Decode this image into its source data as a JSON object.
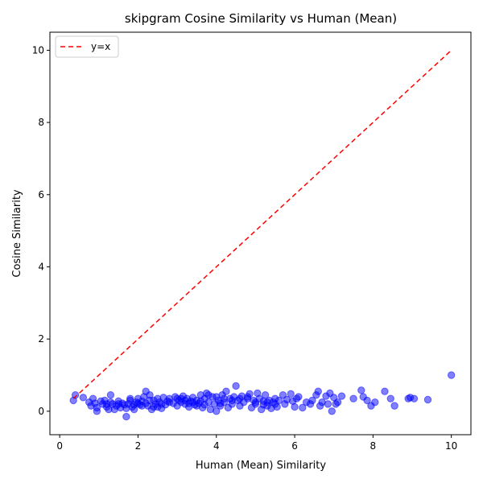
{
  "chart_data": {
    "type": "scatter",
    "title": "skipgram Cosine Similarity vs Human (Mean)",
    "xlabel": "Human (Mean) Similarity",
    "ylabel": "Cosine Similarity",
    "xlim": [
      -0.25,
      10.5
    ],
    "ylim": [
      -0.65,
      10.5
    ],
    "xticks": [
      0,
      2,
      4,
      6,
      8,
      10
    ],
    "yticks": [
      0,
      2,
      4,
      6,
      8,
      10
    ],
    "grid": false,
    "legend": {
      "position": "top-left",
      "entries": [
        "y=x"
      ]
    },
    "colors": {
      "points": "#0000ff",
      "reference": "#ff0000"
    },
    "reference_line": {
      "name": "y=x",
      "x": [
        0.35,
        10
      ],
      "y": [
        0.35,
        10
      ]
    },
    "points": [
      [
        0.35,
        0.3
      ],
      [
        0.4,
        0.45
      ],
      [
        0.6,
        0.38
      ],
      [
        0.75,
        0.25
      ],
      [
        0.8,
        0.15
      ],
      [
        0.85,
        0.35
      ],
      [
        0.9,
        0.22
      ],
      [
        0.95,
        0.1
      ],
      [
        0.95,
        0.0
      ],
      [
        1.05,
        0.28
      ],
      [
        1.1,
        0.2
      ],
      [
        1.15,
        0.3
      ],
      [
        1.2,
        0.12
      ],
      [
        1.25,
        0.05
      ],
      [
        1.3,
        0.45
      ],
      [
        1.3,
        0.25
      ],
      [
        1.35,
        0.2
      ],
      [
        1.4,
        0.05
      ],
      [
        1.45,
        0.15
      ],
      [
        1.5,
        0.28
      ],
      [
        1.55,
        0.1
      ],
      [
        1.6,
        0.22
      ],
      [
        1.65,
        0.18
      ],
      [
        1.7,
        0.08
      ],
      [
        1.7,
        -0.15
      ],
      [
        1.75,
        0.2
      ],
      [
        1.8,
        0.3
      ],
      [
        1.85,
        0.12
      ],
      [
        1.9,
        0.05
      ],
      [
        1.95,
        0.25
      ],
      [
        2.0,
        0.35
      ],
      [
        2.05,
        0.18
      ],
      [
        2.1,
        0.28
      ],
      [
        2.15,
        0.4
      ],
      [
        2.2,
        0.55
      ],
      [
        2.2,
        0.22
      ],
      [
        2.25,
        0.15
      ],
      [
        2.3,
        0.45
      ],
      [
        2.35,
        0.05
      ],
      [
        2.4,
        0.3
      ],
      [
        2.45,
        0.2
      ],
      [
        2.5,
        0.12
      ],
      [
        2.55,
        0.25
      ],
      [
        2.6,
        0.08
      ],
      [
        2.65,
        0.38
      ],
      [
        2.7,
        0.18
      ],
      [
        2.75,
        0.28
      ],
      [
        2.8,
        0.35
      ],
      [
        2.9,
        0.22
      ],
      [
        2.95,
        0.4
      ],
      [
        3.0,
        0.15
      ],
      [
        3.05,
        0.3
      ],
      [
        3.1,
        0.25
      ],
      [
        3.15,
        0.42
      ],
      [
        3.2,
        0.2
      ],
      [
        3.25,
        0.35
      ],
      [
        3.3,
        0.12
      ],
      [
        3.35,
        0.28
      ],
      [
        3.4,
        0.38
      ],
      [
        3.45,
        0.18
      ],
      [
        3.5,
        0.3
      ],
      [
        3.55,
        0.22
      ],
      [
        3.6,
        0.45
      ],
      [
        3.65,
        0.1
      ],
      [
        3.7,
        0.35
      ],
      [
        3.75,
        0.5
      ],
      [
        3.8,
        0.25
      ],
      [
        3.85,
        0.05
      ],
      [
        3.9,
        0.4
      ],
      [
        3.95,
        0.2
      ],
      [
        4.0,
        0.0
      ],
      [
        4.05,
        0.3
      ],
      [
        4.1,
        0.15
      ],
      [
        4.15,
        0.45
      ],
      [
        4.2,
        0.25
      ],
      [
        4.25,
        0.55
      ],
      [
        4.3,
        0.1
      ],
      [
        4.35,
        0.35
      ],
      [
        4.4,
        0.2
      ],
      [
        4.45,
        0.4
      ],
      [
        4.5,
        0.7
      ],
      [
        4.55,
        0.3
      ],
      [
        4.6,
        0.15
      ],
      [
        4.65,
        0.42
      ],
      [
        4.7,
        0.25
      ],
      [
        4.8,
        0.35
      ],
      [
        4.85,
        0.48
      ],
      [
        4.9,
        0.1
      ],
      [
        4.95,
        0.3
      ],
      [
        5.0,
        0.2
      ],
      [
        5.05,
        0.5
      ],
      [
        5.1,
        0.35
      ],
      [
        5.15,
        0.05
      ],
      [
        5.2,
        0.28
      ],
      [
        5.25,
        0.45
      ],
      [
        5.3,
        0.15
      ],
      [
        5.35,
        0.3
      ],
      [
        5.4,
        0.08
      ],
      [
        5.45,
        0.25
      ],
      [
        5.5,
        0.35
      ],
      [
        5.55,
        0.12
      ],
      [
        5.6,
        0.3
      ],
      [
        5.7,
        0.45
      ],
      [
        5.75,
        0.2
      ],
      [
        5.8,
        0.32
      ],
      [
        5.9,
        0.48
      ],
      [
        5.95,
        0.28
      ],
      [
        6.0,
        0.12
      ],
      [
        6.05,
        0.35
      ],
      [
        6.1,
        0.4
      ],
      [
        6.2,
        0.1
      ],
      [
        6.3,
        0.25
      ],
      [
        6.4,
        0.2
      ],
      [
        6.45,
        0.3
      ],
      [
        6.55,
        0.45
      ],
      [
        6.6,
        0.55
      ],
      [
        6.65,
        0.15
      ],
      [
        6.7,
        0.25
      ],
      [
        6.8,
        0.42
      ],
      [
        6.85,
        0.2
      ],
      [
        6.9,
        0.5
      ],
      [
        6.95,
        0.0
      ],
      [
        7.0,
        0.38
      ],
      [
        7.05,
        0.2
      ],
      [
        7.1,
        0.25
      ],
      [
        7.2,
        0.42
      ],
      [
        7.5,
        0.35
      ],
      [
        7.7,
        0.58
      ],
      [
        7.75,
        0.4
      ],
      [
        7.85,
        0.3
      ],
      [
        7.95,
        0.15
      ],
      [
        8.05,
        0.25
      ],
      [
        8.3,
        0.55
      ],
      [
        8.45,
        0.35
      ],
      [
        8.55,
        0.15
      ],
      [
        8.9,
        0.35
      ],
      [
        8.95,
        0.38
      ],
      [
        9.05,
        0.35
      ],
      [
        9.4,
        0.32
      ],
      [
        10.0,
        1.0
      ],
      [
        2.0,
        0.22
      ],
      [
        2.3,
        0.3
      ],
      [
        2.5,
        0.35
      ],
      [
        3.5,
        0.15
      ],
      [
        3.2,
        0.3
      ],
      [
        4.0,
        0.4
      ],
      [
        4.4,
        0.3
      ],
      [
        5.0,
        0.25
      ],
      [
        1.8,
        0.35
      ],
      [
        3.8,
        0.45
      ],
      [
        2.6,
        0.2
      ],
      [
        3.3,
        0.22
      ],
      [
        4.2,
        0.35
      ],
      [
        5.3,
        0.25
      ],
      [
        1.2,
        0.2
      ],
      [
        1.5,
        0.2
      ],
      [
        2.1,
        0.15
      ],
      [
        3.6,
        0.28
      ],
      [
        4.6,
        0.35
      ],
      [
        5.5,
        0.2
      ],
      [
        3.0,
        0.35
      ],
      [
        3.4,
        0.25
      ],
      [
        2.8,
        0.25
      ],
      [
        4.1,
        0.22
      ],
      [
        3.7,
        0.18
      ],
      [
        2.4,
        0.12
      ],
      [
        4.8,
        0.4
      ],
      [
        5.2,
        0.18
      ],
      [
        3.1,
        0.35
      ],
      [
        1.9,
        0.18
      ]
    ]
  }
}
